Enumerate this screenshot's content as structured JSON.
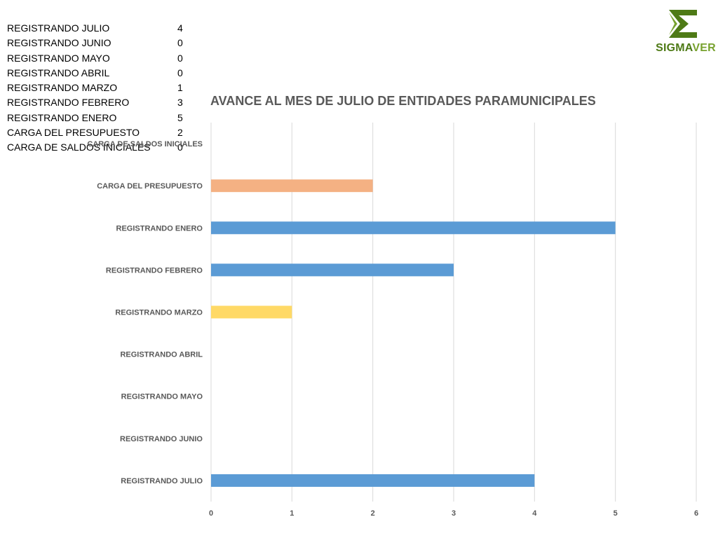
{
  "summary": [
    {
      "label": "REGISTRANDO JULIO",
      "value": "4"
    },
    {
      "label": "REGISTRANDO JUNIO",
      "value": "0"
    },
    {
      "label": "REGISTRANDO MAYO",
      "value": "0"
    },
    {
      "label": "REGISTRANDO ABRIL",
      "value": "0"
    },
    {
      "label": "REGISTRANDO MARZO",
      "value": "1"
    },
    {
      "label": "REGISTRANDO FEBRERO",
      "value": "3"
    },
    {
      "label": "REGISTRANDO ENERO",
      "value": "5"
    },
    {
      "label": "CARGA DEL PRESUPUESTO",
      "value": "2"
    },
    {
      "label": "CARGA DE SALDOS INICIALES",
      "value": "0"
    }
  ],
  "logo": {
    "part1": "SIGMA",
    "part2": "VER"
  },
  "colors": {
    "blue": "#5b9bd5",
    "orange": "#f4b183",
    "yellow": "#ffd966",
    "grid": "#d9d9d9",
    "text": "#595959"
  },
  "chart_data": {
    "type": "bar",
    "orientation": "horizontal",
    "title": "AVANCE AL MES DE JULIO DE ENTIDADES PARAMUNICIPALES",
    "categories": [
      "CARGA DE SALDOS INICIALES",
      "CARGA DEL PRESUPUESTO",
      "REGISTRANDO ENERO",
      "REGISTRANDO FEBRERO",
      "REGISTRANDO MARZO",
      "REGISTRANDO ABRIL",
      "REGISTRANDO MAYO",
      "REGISTRANDO JUNIO",
      "REGISTRANDO JULIO"
    ],
    "values": [
      0,
      2,
      5,
      3,
      1,
      0,
      0,
      0,
      4
    ],
    "bar_colors": [
      "#5b9bd5",
      "#f4b183",
      "#5b9bd5",
      "#5b9bd5",
      "#ffd966",
      "#5b9bd5",
      "#5b9bd5",
      "#5b9bd5",
      "#5b9bd5"
    ],
    "xlim": [
      0,
      6
    ],
    "xticks": [
      "0",
      "1",
      "2",
      "3",
      "4",
      "5",
      "6"
    ],
    "grid": true,
    "legend": "none"
  }
}
